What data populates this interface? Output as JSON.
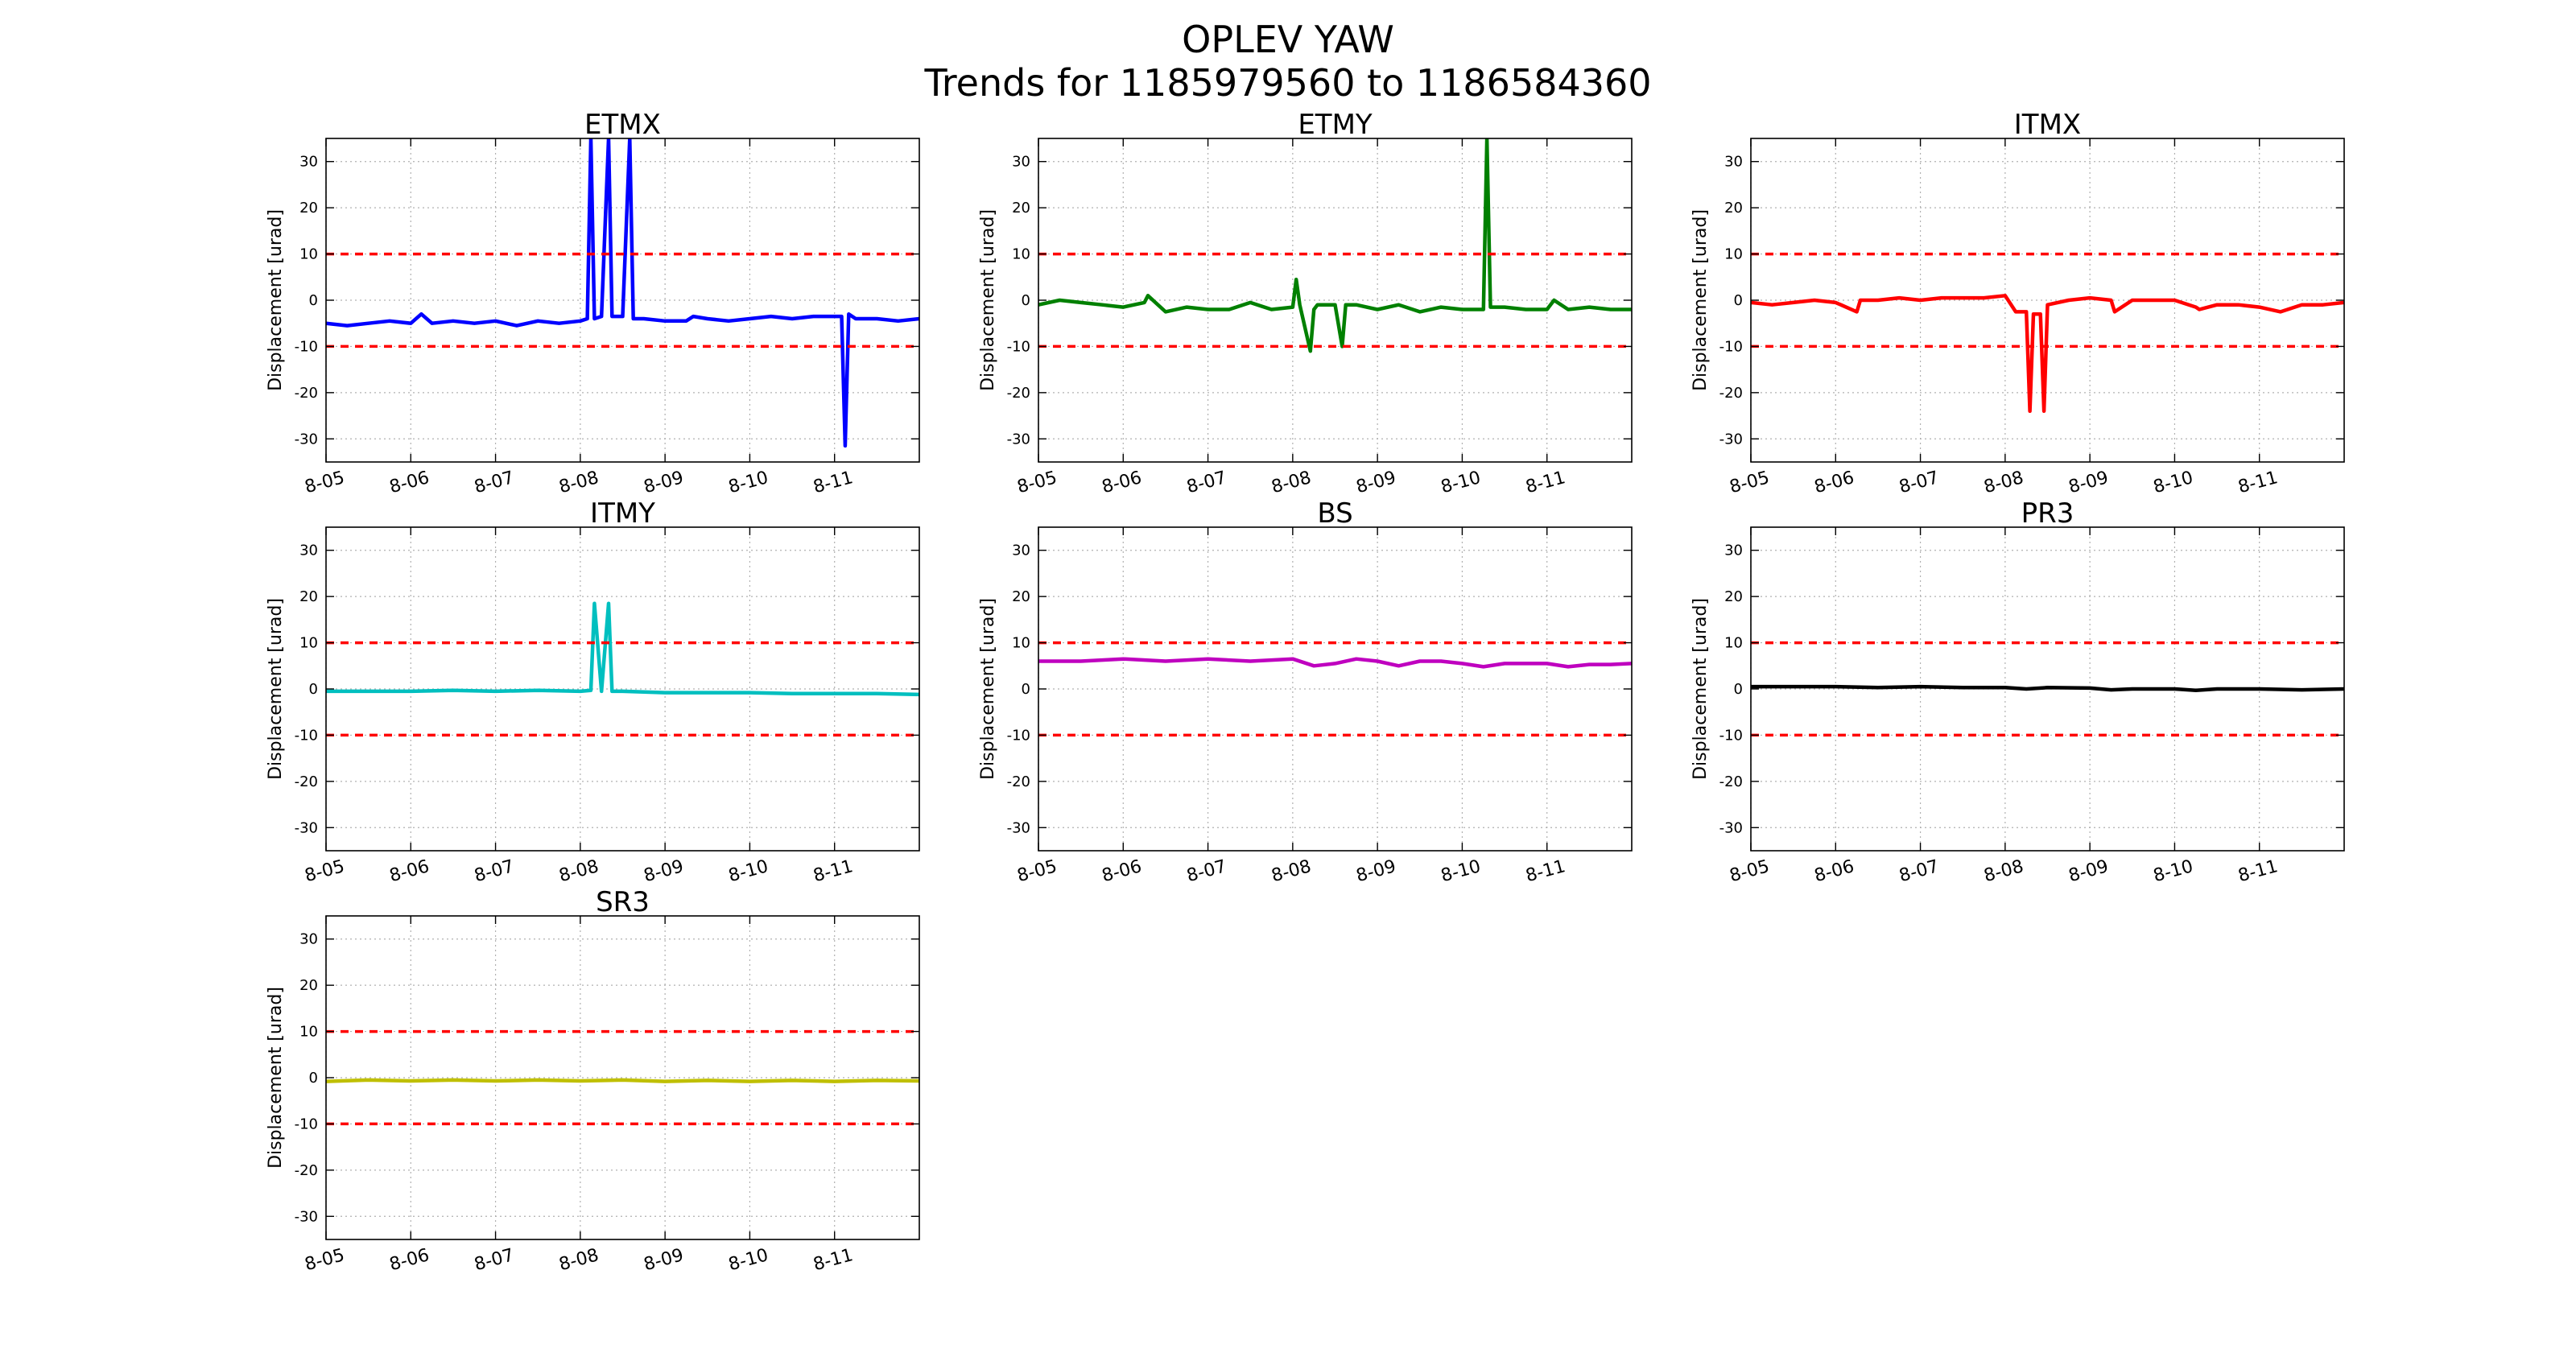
{
  "figure": {
    "title_line1": "OPLEV YAW",
    "title_line2": "Trends for 1185979560 to 1186584360",
    "colors": {
      "limit_line": "#ff0000",
      "grid": "#b0b0b0",
      "axes": "#000000"
    }
  },
  "chart_data": [
    {
      "type": "line",
      "title": "ETMX",
      "xlabel": "",
      "ylabel": "Displacement [urad]",
      "xlim": [
        "8-05",
        "8-12"
      ],
      "ylim": [
        -35,
        35
      ],
      "x_ticks": [
        "8-05",
        "8-06",
        "8-07",
        "8-08",
        "8-09",
        "8-10",
        "8-11"
      ],
      "y_ticks": [
        30,
        20,
        10,
        0,
        -10,
        -20,
        -30
      ],
      "grid": true,
      "limits": [
        10,
        -10
      ],
      "series": [
        {
          "color": "#0000ff",
          "x": [
            "8-05",
            "8-05 06:00",
            "8-05 12:00",
            "8-05 18:00",
            "8-06",
            "8-06 03:00",
            "8-06 06:00",
            "8-06 12:00",
            "8-06 18:00",
            "8-07",
            "8-07 06:00",
            "8-07 12:00",
            "8-07 18:00",
            "8-08",
            "8-08 02:00",
            "8-08 03:00",
            "8-08 04:00",
            "8-08 06:00",
            "8-08 08:00",
            "8-08 09:00",
            "8-08 12:00",
            "8-08 14:00",
            "8-08 15:00",
            "8-08 18:00",
            "8-09",
            "8-09 06:00",
            "8-09 08:00",
            "8-09 12:00",
            "8-09 18:00",
            "8-10",
            "8-10 06:00",
            "8-10 12:00",
            "8-10 18:00",
            "8-11",
            "8-11 02:00",
            "8-11 03:00",
            "8-11 04:00",
            "8-11 06:00",
            "8-11 12:00",
            "8-11 18:00",
            "8-12"
          ],
          "y": [
            -5,
            -5.5,
            -5,
            -4.5,
            -5,
            -3,
            -5,
            -4.5,
            -5,
            -4.5,
            -5.5,
            -4.5,
            -5,
            -4.5,
            -4,
            35,
            -4,
            -3.5,
            35,
            -3.5,
            -3.5,
            35,
            -4,
            -4,
            -4.5,
            -4.5,
            -3.5,
            -4,
            -4.5,
            -4,
            -3.5,
            -4,
            -3.5,
            -3.5,
            -3.5,
            -31.5,
            -3,
            -4,
            -4,
            -4.5,
            -4
          ]
        }
      ]
    },
    {
      "type": "line",
      "title": "ETMY",
      "xlabel": "",
      "ylabel": "Displacement [urad]",
      "xlim": [
        "8-05",
        "8-12"
      ],
      "ylim": [
        -35,
        35
      ],
      "x_ticks": [
        "8-05",
        "8-06",
        "8-07",
        "8-08",
        "8-09",
        "8-10",
        "8-11"
      ],
      "y_ticks": [
        30,
        20,
        10,
        0,
        -10,
        -20,
        -30
      ],
      "grid": true,
      "limits": [
        10,
        -10
      ],
      "series": [
        {
          "color": "#008000",
          "x": [
            "8-05",
            "8-05 06:00",
            "8-05 12:00",
            "8-05 18:00",
            "8-06",
            "8-06 06:00",
            "8-06 07:00",
            "8-06 12:00",
            "8-06 18:00",
            "8-07",
            "8-07 06:00",
            "8-07 12:00",
            "8-07 18:00",
            "8-08",
            "8-08 01:00",
            "8-08 02:00",
            "8-08 05:00",
            "8-08 06:00",
            "8-08 07:00",
            "8-08 12:00",
            "8-08 14:00",
            "8-08 15:00",
            "8-08 18:00",
            "8-09",
            "8-09 06:00",
            "8-09 12:00",
            "8-09 18:00",
            "8-10",
            "8-10 06:00",
            "8-10 07:00",
            "8-10 08:00",
            "8-10 12:00",
            "8-10 18:00",
            "8-11",
            "8-11 02:00",
            "8-11 06:00",
            "8-11 12:00",
            "8-11 18:00",
            "8-12"
          ],
          "y": [
            -1,
            0,
            -0.5,
            -1,
            -1.5,
            -0.5,
            1,
            -2.5,
            -1.5,
            -2,
            -2,
            -0.5,
            -2,
            -1.5,
            4.5,
            -1,
            -11,
            -2,
            -1,
            -1,
            -10,
            -1,
            -1,
            -2,
            -1,
            -2.5,
            -1.5,
            -2,
            -2,
            35,
            -1.5,
            -1.5,
            -2,
            -2,
            0,
            -2,
            -1.5,
            -2,
            -2
          ]
        }
      ]
    },
    {
      "type": "line",
      "title": "ITMX",
      "xlabel": "",
      "ylabel": "Displacement [urad]",
      "xlim": [
        "8-05",
        "8-12"
      ],
      "ylim": [
        -35,
        35
      ],
      "x_ticks": [
        "8-05",
        "8-06",
        "8-07",
        "8-08",
        "8-09",
        "8-10",
        "8-11"
      ],
      "y_ticks": [
        30,
        20,
        10,
        0,
        -10,
        -20,
        -30
      ],
      "grid": true,
      "limits": [
        10,
        -10
      ],
      "series": [
        {
          "color": "#ff0000",
          "x": [
            "8-05",
            "8-05 06:00",
            "8-05 12:00",
            "8-05 18:00",
            "8-06",
            "8-06 06:00",
            "8-06 07:00",
            "8-06 12:00",
            "8-06 18:00",
            "8-07",
            "8-07 06:00",
            "8-07 12:00",
            "8-07 18:00",
            "8-08",
            "8-08 03:00",
            "8-08 06:00",
            "8-08 07:00",
            "8-08 08:00",
            "8-08 10:00",
            "8-08 11:00",
            "8-08 12:00",
            "8-08 18:00",
            "8-09",
            "8-09 06:00",
            "8-09 07:00",
            "8-09 12:00",
            "8-09 18:00",
            "8-10",
            "8-10 06:00",
            "8-10 07:00",
            "8-10 12:00",
            "8-10 18:00",
            "8-11",
            "8-11 06:00",
            "8-11 12:00",
            "8-11 18:00",
            "8-12"
          ],
          "y": [
            -0.5,
            -1,
            -0.5,
            0,
            -0.5,
            -2.5,
            0,
            0,
            0.5,
            0,
            0.5,
            0.5,
            0.5,
            1,
            -2.5,
            -2.5,
            -24,
            -3,
            -3,
            -24,
            -1,
            0,
            0.5,
            0,
            -2.5,
            0,
            0,
            0,
            -1.5,
            -2,
            -1,
            -1,
            -1.5,
            -2.5,
            -1,
            -1,
            -0.5
          ]
        }
      ]
    },
    {
      "type": "line",
      "title": "ITMY",
      "xlabel": "",
      "ylabel": "Displacement [urad]",
      "xlim": [
        "8-05",
        "8-12"
      ],
      "ylim": [
        -35,
        35
      ],
      "x_ticks": [
        "8-05",
        "8-06",
        "8-07",
        "8-08",
        "8-09",
        "8-10",
        "8-11"
      ],
      "y_ticks": [
        30,
        20,
        10,
        0,
        -10,
        -20,
        -30
      ],
      "grid": true,
      "limits": [
        10,
        -10
      ],
      "series": [
        {
          "color": "#00bfbf",
          "x": [
            "8-05",
            "8-05 12:00",
            "8-06",
            "8-06 12:00",
            "8-07",
            "8-07 12:00",
            "8-08",
            "8-08 03:00",
            "8-08 04:00",
            "8-08 06:00",
            "8-08 08:00",
            "8-08 09:00",
            "8-08 12:00",
            "8-09",
            "8-09 12:00",
            "8-10",
            "8-10 12:00",
            "8-11",
            "8-11 12:00",
            "8-12"
          ],
          "y": [
            -0.5,
            -0.5,
            -0.5,
            -0.3,
            -0.5,
            -0.3,
            -0.5,
            -0.3,
            18.5,
            -0.5,
            18.5,
            -0.5,
            -0.5,
            -0.8,
            -0.8,
            -0.8,
            -1,
            -1,
            -1,
            -1.2
          ]
        }
      ]
    },
    {
      "type": "line",
      "title": "BS",
      "xlabel": "",
      "ylabel": "Displacement [urad]",
      "xlim": [
        "8-05",
        "8-12"
      ],
      "ylim": [
        -35,
        35
      ],
      "x_ticks": [
        "8-05",
        "8-06",
        "8-07",
        "8-08",
        "8-09",
        "8-10",
        "8-11"
      ],
      "y_ticks": [
        30,
        20,
        10,
        0,
        -10,
        -20,
        -30
      ],
      "grid": true,
      "limits": [
        10,
        -10
      ],
      "series": [
        {
          "color": "#bf00bf",
          "x": [
            "8-05",
            "8-05 12:00",
            "8-06",
            "8-06 12:00",
            "8-07",
            "8-07 12:00",
            "8-08",
            "8-08 06:00",
            "8-08 12:00",
            "8-08 18:00",
            "8-09",
            "8-09 06:00",
            "8-09 12:00",
            "8-09 18:00",
            "8-10",
            "8-10 06:00",
            "8-10 12:00",
            "8-10 18:00",
            "8-11",
            "8-11 06:00",
            "8-11 12:00",
            "8-11 18:00",
            "8-12"
          ],
          "y": [
            6,
            6,
            6.5,
            6,
            6.5,
            6,
            6.5,
            5,
            5.5,
            6.5,
            6,
            5,
            6,
            6,
            5.5,
            4.8,
            5.5,
            5.5,
            5.5,
            4.8,
            5.3,
            5.3,
            5.5
          ]
        }
      ]
    },
    {
      "type": "line",
      "title": "PR3",
      "xlabel": "",
      "ylabel": "Displacement [urad]",
      "xlim": [
        "8-05",
        "8-12"
      ],
      "ylim": [
        -35,
        35
      ],
      "x_ticks": [
        "8-05",
        "8-06",
        "8-07",
        "8-08",
        "8-09",
        "8-10",
        "8-11"
      ],
      "y_ticks": [
        30,
        20,
        10,
        0,
        -10,
        -20,
        -30
      ],
      "grid": true,
      "limits": [
        10,
        -10
      ],
      "series": [
        {
          "color": "#000000",
          "x": [
            "8-05",
            "8-05 12:00",
            "8-06",
            "8-06 12:00",
            "8-07",
            "8-07 12:00",
            "8-08",
            "8-08 06:00",
            "8-08 12:00",
            "8-09",
            "8-09 06:00",
            "8-09 12:00",
            "8-10",
            "8-10 06:00",
            "8-10 12:00",
            "8-11",
            "8-11 12:00",
            "8-12"
          ],
          "y": [
            0.5,
            0.5,
            0.5,
            0.3,
            0.5,
            0.3,
            0.3,
            0,
            0.3,
            0.2,
            -0.2,
            0,
            0,
            -0.3,
            0,
            0,
            -0.2,
            0
          ]
        }
      ]
    },
    {
      "type": "line",
      "title": "SR3",
      "xlabel": "",
      "ylabel": "Displacement [urad]",
      "xlim": [
        "8-05",
        "8-12"
      ],
      "ylim": [
        -35,
        35
      ],
      "x_ticks": [
        "8-05",
        "8-06",
        "8-07",
        "8-08",
        "8-09",
        "8-10",
        "8-11"
      ],
      "y_ticks": [
        30,
        20,
        10,
        0,
        -10,
        -20,
        -30
      ],
      "grid": true,
      "limits": [
        10,
        -10
      ],
      "series": [
        {
          "color": "#bfbf00",
          "x": [
            "8-05",
            "8-05 12:00",
            "8-06",
            "8-06 12:00",
            "8-07",
            "8-07 12:00",
            "8-08",
            "8-08 12:00",
            "8-09",
            "8-09 12:00",
            "8-10",
            "8-10 12:00",
            "8-11",
            "8-11 12:00",
            "8-12"
          ],
          "y": [
            -0.8,
            -0.5,
            -0.7,
            -0.5,
            -0.7,
            -0.5,
            -0.7,
            -0.5,
            -0.8,
            -0.6,
            -0.8,
            -0.6,
            -0.8,
            -0.6,
            -0.7
          ]
        }
      ]
    }
  ]
}
